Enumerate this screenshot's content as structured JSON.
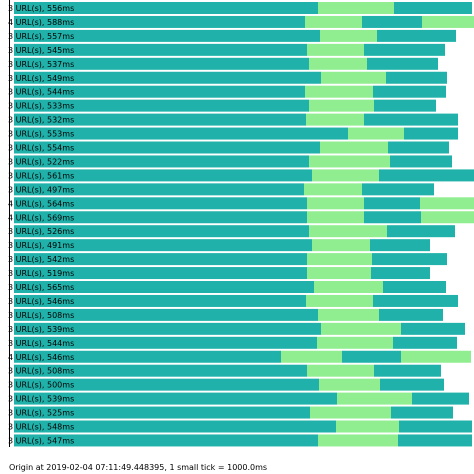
{
  "chart_data": {
    "type": "bar",
    "orientation": "horizontal",
    "stacked": true,
    "title": "",
    "footer": "Origin at 2019-02-04 07:11:49.448395, 1 small tick = 1000.0ms",
    "xlabel": "",
    "ylabel": "",
    "legend": "none",
    "grid": false,
    "colors": {
      "dark": "#20b2aa",
      "light": "#90ee90"
    },
    "rows": [
      {
        "label": "3 URL(s), 556ms",
        "segments": [
          [
            "dark",
            304
          ],
          [
            "light",
            76
          ],
          [
            "dark",
            78
          ]
        ]
      },
      {
        "label": "4 URL(s), 588ms",
        "segments": [
          [
            "dark",
            291
          ],
          [
            "light",
            57
          ],
          [
            "dark",
            60
          ],
          [
            "light",
            59
          ]
        ]
      },
      {
        "label": "3 URL(s), 557ms",
        "segments": [
          [
            "dark",
            306
          ],
          [
            "light",
            57
          ],
          [
            "dark",
            79
          ]
        ]
      },
      {
        "label": "3 URL(s), 545ms",
        "segments": [
          [
            "dark",
            293
          ],
          [
            "light",
            57
          ],
          [
            "dark",
            81
          ]
        ]
      },
      {
        "label": "3 URL(s), 537ms",
        "segments": [
          [
            "dark",
            295
          ],
          [
            "light",
            58
          ],
          [
            "dark",
            71
          ]
        ]
      },
      {
        "label": "3 URL(s), 549ms",
        "segments": [
          [
            "dark",
            307
          ],
          [
            "light",
            65
          ],
          [
            "dark",
            61
          ]
        ]
      },
      {
        "label": "3 URL(s), 544ms",
        "segments": [
          [
            "dark",
            291
          ],
          [
            "light",
            68
          ],
          [
            "dark",
            73
          ]
        ]
      },
      {
        "label": "3 URL(s), 533ms",
        "segments": [
          [
            "dark",
            295
          ],
          [
            "light",
            65
          ],
          [
            "dark",
            62
          ]
        ]
      },
      {
        "label": "3 URL(s), 532ms",
        "segments": [
          [
            "dark",
            292
          ],
          [
            "light",
            58
          ],
          [
            "dark",
            94
          ]
        ]
      },
      {
        "label": "3 URL(s), 553ms",
        "segments": [
          [
            "dark",
            334
          ],
          [
            "light",
            56
          ],
          [
            "dark",
            54
          ]
        ]
      },
      {
        "label": "3 URL(s), 554ms",
        "segments": [
          [
            "dark",
            306
          ],
          [
            "light",
            68
          ],
          [
            "dark",
            61
          ]
        ]
      },
      {
        "label": "3 URL(s), 522ms",
        "segments": [
          [
            "dark",
            295
          ],
          [
            "light",
            81
          ],
          [
            "dark",
            62
          ]
        ]
      },
      {
        "label": "3 URL(s), 561ms",
        "segments": [
          [
            "dark",
            298
          ],
          [
            "light",
            67
          ],
          [
            "dark",
            95
          ]
        ]
      },
      {
        "label": "3 URL(s), 497ms",
        "segments": [
          [
            "dark",
            290
          ],
          [
            "light",
            58
          ],
          [
            "dark",
            72
          ]
        ]
      },
      {
        "label": "4 URL(s), 564ms",
        "segments": [
          [
            "dark",
            293
          ],
          [
            "light",
            57
          ],
          [
            "dark",
            56
          ],
          [
            "light",
            60
          ]
        ]
      },
      {
        "label": "4 URL(s), 569ms",
        "segments": [
          [
            "dark",
            293
          ],
          [
            "light",
            57
          ],
          [
            "dark",
            57
          ],
          [
            "light",
            66
          ]
        ]
      },
      {
        "label": "3 URL(s), 526ms",
        "segments": [
          [
            "dark",
            295
          ],
          [
            "light",
            78
          ],
          [
            "dark",
            68
          ]
        ]
      },
      {
        "label": "3 URL(s), 491ms",
        "segments": [
          [
            "dark",
            298
          ],
          [
            "light",
            58
          ],
          [
            "dark",
            60
          ]
        ]
      },
      {
        "label": "3 URL(s), 542ms",
        "segments": [
          [
            "dark",
            293
          ],
          [
            "light",
            65
          ],
          [
            "dark",
            75
          ]
        ]
      },
      {
        "label": "3 URL(s), 519ms",
        "segments": [
          [
            "dark",
            293
          ],
          [
            "light",
            64
          ],
          [
            "dark",
            59
          ]
        ]
      },
      {
        "label": "3 URL(s), 565ms",
        "segments": [
          [
            "dark",
            300
          ],
          [
            "light",
            69
          ],
          [
            "dark",
            63
          ]
        ]
      },
      {
        "label": "3 URL(s), 546ms",
        "segments": [
          [
            "dark",
            292
          ],
          [
            "light",
            67
          ],
          [
            "dark",
            85
          ]
        ]
      },
      {
        "label": "3 URL(s), 508ms",
        "segments": [
          [
            "dark",
            304
          ],
          [
            "light",
            61
          ],
          [
            "dark",
            64
          ]
        ]
      },
      {
        "label": "3 URL(s), 539ms",
        "segments": [
          [
            "dark",
            307
          ],
          [
            "light",
            80
          ],
          [
            "dark",
            64
          ]
        ]
      },
      {
        "label": "3 URL(s), 544ms",
        "segments": [
          [
            "dark",
            303
          ],
          [
            "light",
            76
          ],
          [
            "dark",
            64
          ]
        ]
      },
      {
        "label": "4 URL(s), 546ms",
        "segments": [
          [
            "dark",
            267
          ],
          [
            "light",
            61
          ],
          [
            "dark",
            59
          ],
          [
            "light",
            70
          ]
        ]
      },
      {
        "label": "3 URL(s), 508ms",
        "segments": [
          [
            "dark",
            293
          ],
          [
            "light",
            67
          ],
          [
            "dark",
            67
          ]
        ]
      },
      {
        "label": "3 URL(s), 500ms",
        "segments": [
          [
            "dark",
            305
          ],
          [
            "light",
            61
          ],
          [
            "dark",
            64
          ]
        ]
      },
      {
        "label": "3 URL(s), 539ms",
        "segments": [
          [
            "dark",
            323
          ],
          [
            "light",
            75
          ],
          [
            "dark",
            57
          ]
        ]
      },
      {
        "label": "3 URL(s), 525ms",
        "segments": [
          [
            "dark",
            296
          ],
          [
            "light",
            81
          ],
          [
            "dark",
            62
          ]
        ]
      },
      {
        "label": "3 URL(s), 548ms",
        "segments": [
          [
            "dark",
            322
          ],
          [
            "light",
            63
          ],
          [
            "dark",
            73
          ]
        ]
      },
      {
        "label": "3 URL(s), 547ms",
        "segments": [
          [
            "dark",
            304
          ],
          [
            "light",
            80
          ],
          [
            "dark",
            74
          ]
        ]
      }
    ]
  }
}
